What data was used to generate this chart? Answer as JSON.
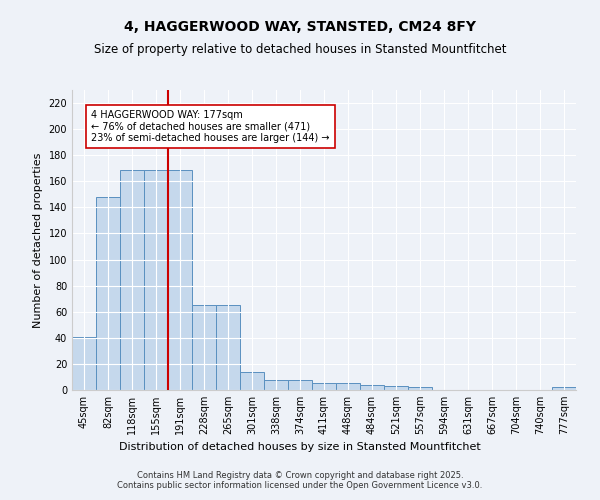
{
  "title": "4, HAGGERWOOD WAY, STANSTED, CM24 8FY",
  "subtitle": "Size of property relative to detached houses in Stansted Mountfitchet",
  "xlabel": "Distribution of detached houses by size in Stansted Mountfitchet",
  "ylabel": "Number of detached properties",
  "categories": [
    "45sqm",
    "82sqm",
    "118sqm",
    "155sqm",
    "191sqm",
    "228sqm",
    "265sqm",
    "301sqm",
    "338sqm",
    "374sqm",
    "411sqm",
    "448sqm",
    "484sqm",
    "521sqm",
    "557sqm",
    "594sqm",
    "631sqm",
    "667sqm",
    "704sqm",
    "740sqm",
    "777sqm"
  ],
  "values": [
    41,
    148,
    169,
    169,
    169,
    65,
    65,
    14,
    8,
    8,
    5,
    5,
    4,
    3,
    2,
    0,
    0,
    0,
    0,
    0,
    2
  ],
  "bar_color": "#c5d8ec",
  "bar_edge_color": "#5a90c0",
  "vline_x_index": 4,
  "vline_color": "#cc0000",
  "annotation_text": "4 HAGGERWOOD WAY: 177sqm\n← 76% of detached houses are smaller (471)\n23% of semi-detached houses are larger (144) →",
  "annotation_box_color": "#ffffff",
  "annotation_box_edge": "#cc0000",
  "ylim": [
    0,
    230
  ],
  "yticks": [
    0,
    20,
    40,
    60,
    80,
    100,
    120,
    140,
    160,
    180,
    200,
    220
  ],
  "bg_color": "#eef2f8",
  "footer": "Contains HM Land Registry data © Crown copyright and database right 2025.\nContains public sector information licensed under the Open Government Licence v3.0.",
  "title_fontsize": 10,
  "subtitle_fontsize": 8.5,
  "xlabel_fontsize": 8,
  "ylabel_fontsize": 8,
  "tick_fontsize": 7,
  "footer_fontsize": 6,
  "ann_fontsize": 7
}
